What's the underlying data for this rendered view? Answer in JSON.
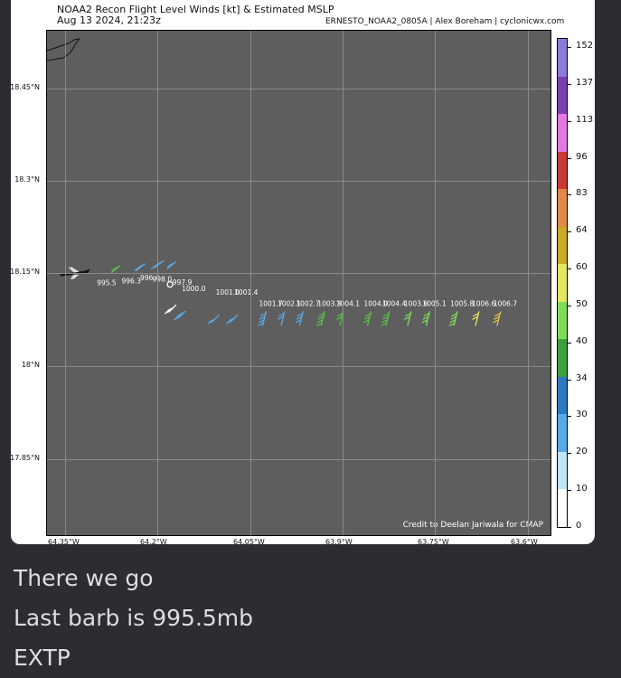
{
  "chart": {
    "title_line1": "NOAA2 Recon Flight Level Winds [kt] & Estimated MSLP",
    "title_line2": "Aug 13 2024, 21:23z",
    "mission_credit": "ERNESTO_NOAA2_0805A | Alex Boreham | cyclonicwx.com",
    "cmap_credit": "Credit to Deelan Jariwala for CMAP",
    "lat_labels": [
      "18.45°N",
      "18.3°N",
      "18.15°N",
      "18°N",
      "17.85°N"
    ],
    "lon_labels": [
      "64.35°W",
      "64.2°W",
      "64.05°W",
      "63.9°W",
      "63.75°W",
      "63.6°W"
    ],
    "colorbar_labels": [
      "152",
      "137",
      "113",
      "96",
      "83",
      "64",
      "60",
      "50",
      "40",
      "34",
      "30",
      "20",
      "10",
      "0"
    ],
    "colorbar_colors": [
      "#ffffff",
      "#bfe3f7",
      "#5aa9e6",
      "#2f78c4",
      "#3f9f3f",
      "#7fdc5a",
      "#e3e65f",
      "#c9a82a",
      "#e08a4a",
      "#c83a3a",
      "#e07ae0",
      "#7a3fb0",
      "#8d7ad8"
    ]
  },
  "chart_data": {
    "type": "map",
    "xlabel": "",
    "ylabel": "",
    "lon_range": [
      -64.38,
      -63.58
    ],
    "lat_range": [
      17.8,
      18.5
    ],
    "wind_barbs": [
      {
        "lon": -64.275,
        "lat": 18.152,
        "mslp": "995.5",
        "color": "#5cc04a"
      },
      {
        "lon": -64.235,
        "lat": 18.155,
        "mslp": "996.3",
        "color": "#5aa9e6"
      },
      {
        "lon": -64.205,
        "lat": 18.16,
        "mslp": "996.4",
        "color": "#5aa9e6"
      },
      {
        "lon": -64.185,
        "lat": 18.158,
        "mslp": "998.0",
        "color": "#5aa9e6"
      },
      {
        "lon": -64.17,
        "lat": 18.1,
        "mslp": "997.9",
        "color": "#ffffff"
      },
      {
        "lon": -64.155,
        "lat": 18.09,
        "mslp": "1000.0",
        "color": "#5aa9e6"
      },
      {
        "lon": -64.1,
        "lat": 18.084,
        "mslp": "1001.0",
        "color": "#5aa9e6"
      },
      {
        "lon": -64.07,
        "lat": 18.084,
        "mslp": "1001.4",
        "color": "#5aa9e6"
      },
      {
        "lon": -64.03,
        "lat": 18.066,
        "mslp": "1001.7",
        "color": "#5aa9e6"
      },
      {
        "lon": -64.0,
        "lat": 18.066,
        "mslp": "1002.1",
        "color": "#5aa9e6"
      },
      {
        "lon": -63.97,
        "lat": 18.066,
        "mslp": "1002.7",
        "color": "#5aa9e6"
      },
      {
        "lon": -63.935,
        "lat": 18.066,
        "mslp": "1003.3",
        "color": "#5cc04a"
      },
      {
        "lon": -63.905,
        "lat": 18.066,
        "mslp": "1004.1",
        "color": "#5cc04a"
      },
      {
        "lon": -63.86,
        "lat": 18.066,
        "mslp": "1004.0",
        "color": "#5cc04a"
      },
      {
        "lon": -63.83,
        "lat": 18.066,
        "mslp": "1004.4",
        "color": "#5cc04a"
      },
      {
        "lon": -63.795,
        "lat": 18.066,
        "mslp": "1003.6",
        "color": "#7fdc5a"
      },
      {
        "lon": -63.765,
        "lat": 18.066,
        "mslp": "1005.1",
        "color": "#7fdc5a"
      },
      {
        "lon": -63.72,
        "lat": 18.066,
        "mslp": "1005.8",
        "color": "#7fdc5a"
      },
      {
        "lon": -63.685,
        "lat": 18.066,
        "mslp": "1006.6",
        "color": "#e3e65f"
      },
      {
        "lon": -63.65,
        "lat": 18.066,
        "mslp": "1006.7",
        "color": "#e3c04a"
      }
    ],
    "center_marker": {
      "lon": -64.18,
      "lat": 18.133
    }
  },
  "message": {
    "line1": "There we go",
    "line2": "Last barb is 995.5mb",
    "line3": "EXTP"
  }
}
